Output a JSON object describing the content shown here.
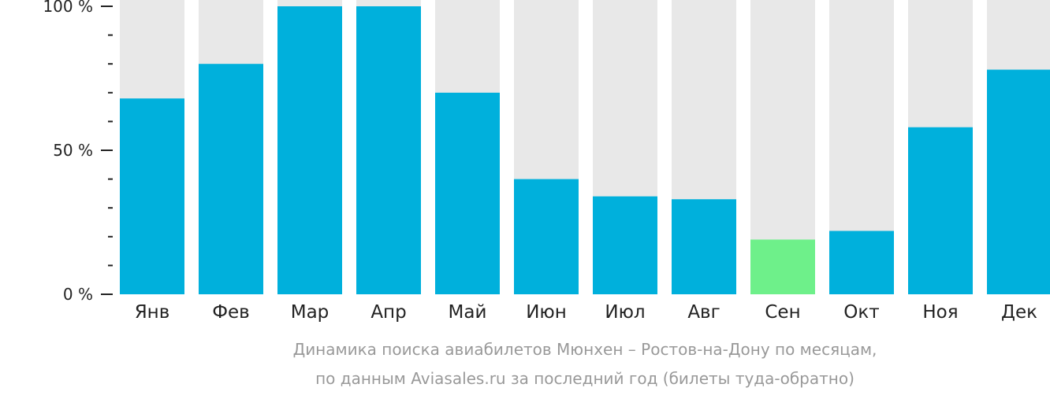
{
  "chart_data": {
    "type": "bar",
    "categories": [
      "Янв",
      "Фев",
      "Мар",
      "Апр",
      "Май",
      "Июн",
      "Июл",
      "Авг",
      "Сен",
      "Окт",
      "Ноя",
      "Дек"
    ],
    "values": [
      68,
      80,
      100,
      100,
      70,
      40,
      34,
      33,
      19,
      22,
      58,
      78
    ],
    "ylim": [
      0,
      100
    ],
    "yticks": [
      {
        "value": 100,
        "label": "100 %"
      },
      {
        "value": 50,
        "label": "50 %"
      },
      {
        "value": 0,
        "label": "0 %"
      }
    ],
    "minor_ytick_values": [
      10,
      20,
      30,
      40,
      60,
      70,
      80,
      90
    ],
    "highlight_index": 8,
    "colors": {
      "bar": "#00b0dc",
      "highlight": "#6ef08a",
      "background_bar": "#e8e8e8",
      "axis": "#222222",
      "caption": "#999999"
    },
    "caption_lines": [
      "Динамика поиска авиабилетов Мюнхен – Ростов-на-Дону по месяцам,",
      "по данным Aviasales.ru за последний год (билеты туда-обратно)"
    ],
    "grid": false,
    "legend": "none"
  }
}
